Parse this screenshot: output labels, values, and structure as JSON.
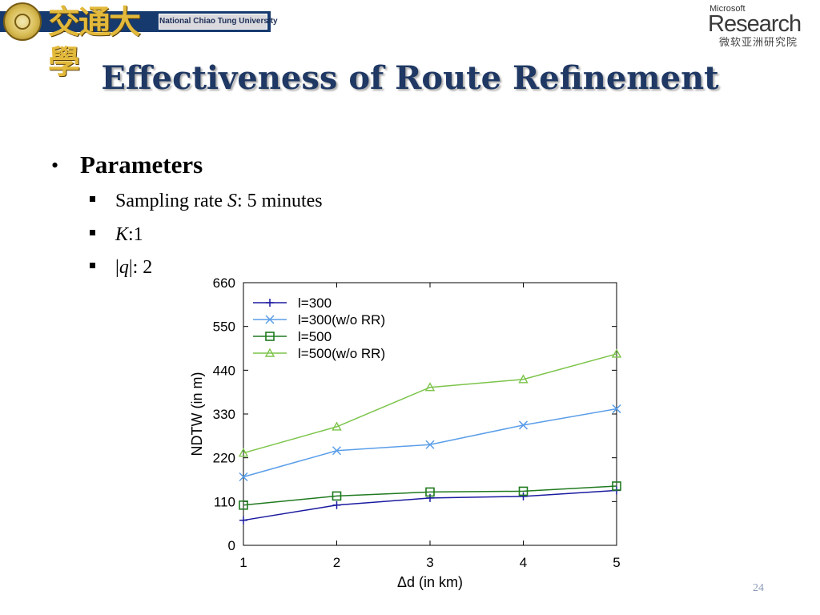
{
  "header": {
    "university_chars": "交通大學",
    "university_name": "National Chiao Tung University",
    "msr_small": "Microsoft",
    "msr_big": "Research",
    "msr_cn": "微软亚洲研究院"
  },
  "title": "Effectiveness of Route Refinement",
  "bullets": {
    "main": "Parameters",
    "items": [
      {
        "prefix": "Sampling rate ",
        "var": "S",
        "suffix": ": 5 minutes"
      },
      {
        "prefix": "",
        "var": "K",
        "suffix": ":1"
      },
      {
        "prefix": "|",
        "var": "q",
        "suffix": "|: 2"
      }
    ]
  },
  "chart_data": {
    "type": "line",
    "x": [
      1,
      2,
      3,
      4,
      5
    ],
    "xlabel": "Δd (in km)",
    "ylabel": "NDTW (in m)",
    "xlim": [
      1,
      5
    ],
    "ylim": [
      0,
      660
    ],
    "yticks": [
      0,
      110,
      220,
      330,
      440,
      550,
      660
    ],
    "xticks": [
      1,
      2,
      3,
      4,
      5
    ],
    "legend_position": "top-left",
    "grid": false,
    "series": [
      {
        "name": "l=300",
        "marker": "plus",
        "color": "#1a1aa0",
        "values": [
          63,
          101,
          119,
          123,
          138
        ]
      },
      {
        "name": "l=300(w/o RR)",
        "marker": "cross",
        "color": "#5a9ee8",
        "values": [
          172,
          238,
          253,
          302,
          343
        ]
      },
      {
        "name": "l=500",
        "marker": "square",
        "color": "#1f7a1f",
        "values": [
          101,
          124,
          134,
          136,
          149
        ]
      },
      {
        "name": "l=500(w/o RR)",
        "marker": "triangle",
        "color": "#7cc44a",
        "values": [
          232,
          298,
          397,
          417,
          481
        ]
      }
    ]
  },
  "page_number": "24"
}
